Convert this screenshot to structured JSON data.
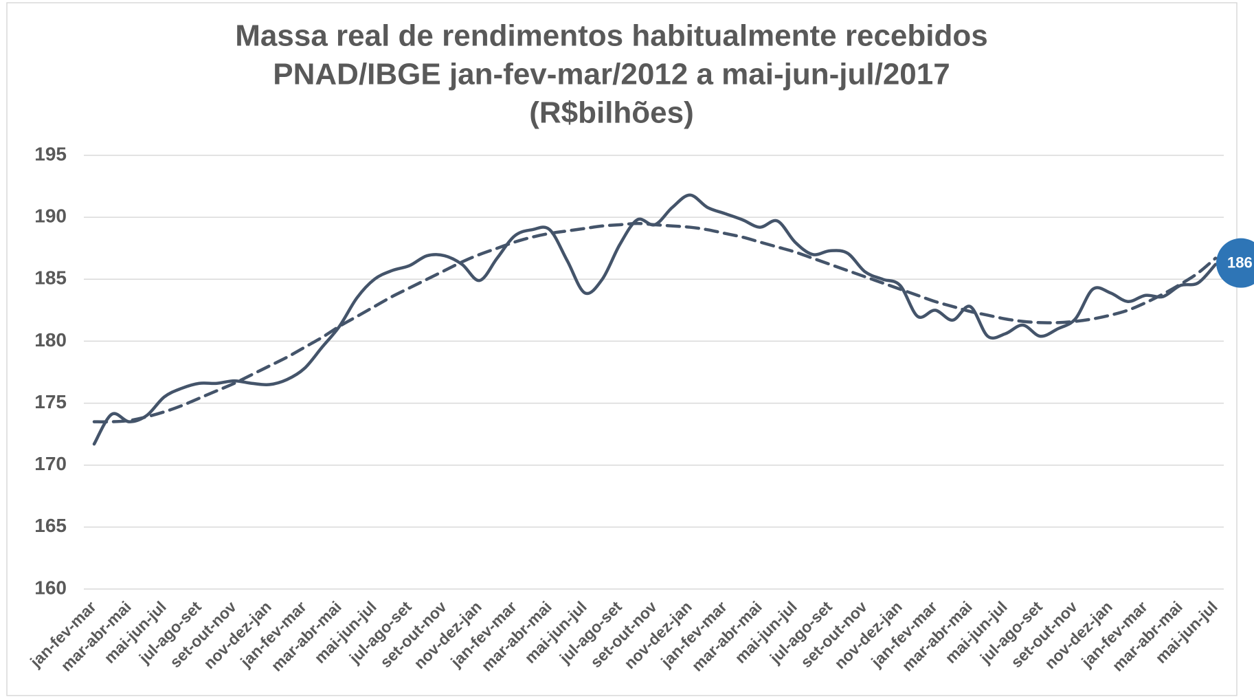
{
  "chart_data": {
    "type": "line",
    "title": [
      "Massa  real de rendimentos habitualmente recebidos",
      "PNAD/IBGE jan-fev-mar/2012 a mai-jun-jul/2017",
      "(R$bilhões)"
    ],
    "categories": [
      "jan-fev-mar",
      null,
      "mar-abr-mai",
      null,
      "mai-jun-jul",
      null,
      "jul-ago-set",
      null,
      "set-out-nov",
      null,
      "nov-dez-jan",
      null,
      "jan-fev-mar",
      null,
      "mar-abr-mai",
      null,
      "mai-jun-jul",
      null,
      "jul-ago-set",
      null,
      "set-out-nov",
      null,
      "nov-dez-jan",
      null,
      "jan-fev-mar",
      null,
      "mar-abr-mai",
      null,
      "mai-jun-jul",
      null,
      "jul-ago-set",
      null,
      "set-out-nov",
      null,
      "nov-dez-jan",
      null,
      "jan-fev-mar",
      null,
      "mar-abr-mai",
      null,
      "mai-jun-jul",
      null,
      "jul-ago-set",
      null,
      "set-out-nov",
      null,
      "nov-dez-jan",
      null,
      "jan-fev-mar",
      null,
      "mar-abr-mai",
      null,
      "mai-jun-jul",
      null,
      "jul-ago-set",
      null,
      "set-out-nov",
      null,
      "nov-dez-jan",
      null,
      "jan-fev-mar",
      null,
      "mar-abr-mai",
      null,
      "mai-jun-jul"
    ],
    "series": [
      {
        "color": "#44546a",
        "dashed": false,
        "values": [
          171.7,
          174.1,
          173.5,
          174.0,
          175.5,
          176.2,
          176.6,
          176.6,
          176.8,
          176.6,
          176.5,
          176.9,
          177.8,
          179.5,
          181.2,
          183.5,
          185.0,
          185.7,
          186.1,
          186.9,
          186.9,
          186.2,
          184.9,
          186.7,
          188.5,
          189.0,
          189.0,
          186.5,
          183.9,
          185.0,
          187.8,
          189.8,
          189.4,
          190.8,
          191.8,
          190.8,
          190.3,
          189.8,
          189.2,
          189.7,
          188.0,
          187.0,
          187.3,
          187.1,
          185.6,
          185.0,
          184.5,
          182.0,
          182.5,
          181.7,
          182.8,
          180.4,
          180.6,
          181.3,
          180.4,
          181.0,
          181.8,
          184.2,
          183.9,
          183.2,
          183.7,
          183.6,
          184.5,
          184.7,
          186.2
        ],
        "value_labels": [
          null,
          null,
          null,
          null,
          null,
          null,
          null,
          null,
          null,
          null,
          null,
          null,
          null,
          null,
          null,
          null,
          null,
          null,
          null,
          null,
          null,
          null,
          null,
          null,
          null,
          null,
          null,
          null,
          null,
          null,
          null,
          null,
          null,
          null,
          null,
          null,
          null,
          null,
          null,
          null,
          null,
          null,
          null,
          null,
          null,
          null,
          null,
          null,
          null,
          null,
          null,
          null,
          null,
          null,
          null,
          null,
          null,
          null,
          null,
          null,
          null,
          null,
          null,
          null,
          "186"
        ],
        "label_color": "#2e75b6"
      },
      {
        "color": "#44546a",
        "dashed": true,
        "values": [
          173.5,
          173.5,
          173.6,
          173.9,
          174.3,
          174.8,
          175.4,
          176.0,
          176.6,
          177.3,
          178.0,
          178.7,
          179.5,
          180.3,
          181.2,
          182.0,
          182.8,
          183.6,
          184.3,
          185.0,
          185.7,
          186.4,
          187.0,
          187.5,
          188.0,
          188.4,
          188.7,
          188.9,
          189.1,
          189.3,
          189.4,
          189.5,
          189.4,
          189.3,
          189.2,
          189.0,
          188.7,
          188.4,
          188.0,
          187.6,
          187.2,
          186.7,
          186.2,
          185.7,
          185.2,
          184.7,
          184.2,
          183.7,
          183.2,
          182.8,
          182.4,
          182.1,
          181.8,
          181.6,
          181.5,
          181.5,
          181.6,
          181.8,
          182.1,
          182.5,
          183.1,
          183.8,
          184.6,
          185.5,
          186.7
        ]
      }
    ],
    "ylim": [
      160,
      195
    ],
    "yticks": [
      160,
      165,
      170,
      175,
      180,
      185,
      190,
      195
    ],
    "grid": true
  }
}
